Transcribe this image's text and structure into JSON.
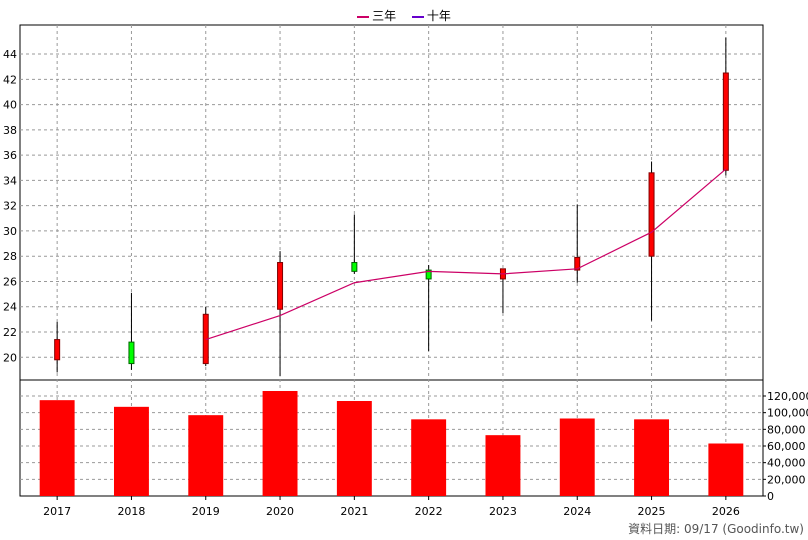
{
  "legend": {
    "three_year": "三年",
    "ten_year": "十年"
  },
  "source_note": "資料日期: 09/17  (Goodinfo.tw)",
  "colors": {
    "up_candle": "#ff0000",
    "up_candle_outline": "#800000",
    "down_candle": "#00ff00",
    "down_candle_outline": "#006400",
    "three_year_line": "#cc0066",
    "ten_year_line": "#6600cc",
    "volume_bar": "#ff0000",
    "grid": "#999999"
  },
  "chart_data": [
    {
      "type": "candlestick",
      "title": "",
      "categories": [
        "2017",
        "2018",
        "2019",
        "2020",
        "2021",
        "2022",
        "2023",
        "2024",
        "2025",
        "2026"
      ],
      "ohlc": [
        {
          "open": 19.8,
          "high": 22.8,
          "low": 18.8,
          "close": 21.4
        },
        {
          "open": 21.2,
          "high": 25.1,
          "low": 19.0,
          "close": 19.5
        },
        {
          "open": 19.5,
          "high": 24.0,
          "low": 19.3,
          "close": 23.4
        },
        {
          "open": 23.8,
          "high": 28.4,
          "low": 18.5,
          "close": 27.5
        },
        {
          "open": 27.5,
          "high": 31.3,
          "low": 26.6,
          "close": 26.8
        },
        {
          "open": 26.9,
          "high": 27.3,
          "low": 20.5,
          "close": 26.2
        },
        {
          "open": 26.2,
          "high": 27.0,
          "low": 23.5,
          "close": 27.0
        },
        {
          "open": 26.9,
          "high": 32.1,
          "low": 25.9,
          "close": 27.9
        },
        {
          "open": 28.0,
          "high": 35.5,
          "low": 22.9,
          "close": 34.6
        },
        {
          "open": 34.8,
          "high": 45.3,
          "low": 34.4,
          "close": 42.5
        }
      ],
      "series": [
        {
          "name": "三年",
          "values": [
            null,
            null,
            21.4,
            23.3,
            25.9,
            26.8,
            26.6,
            27.0,
            29.9,
            34.9
          ]
        },
        {
          "name": "十年",
          "values": [
            null,
            null,
            null,
            null,
            null,
            null,
            null,
            null,
            null,
            null
          ]
        }
      ],
      "y_ticks": [
        20,
        22,
        24,
        26,
        28,
        30,
        32,
        34,
        36,
        38,
        40,
        42,
        44
      ],
      "ylim": [
        18.2,
        46.3
      ],
      "grid": true,
      "legend_position": "top-center"
    },
    {
      "type": "bar",
      "categories": [
        "2017",
        "2018",
        "2019",
        "2020",
        "2021",
        "2022",
        "2023",
        "2024",
        "2025",
        "2026"
      ],
      "values": [
        115000,
        107000,
        97000,
        126000,
        114000,
        92000,
        73000,
        93000,
        92000,
        63000
      ],
      "y_ticks": [
        0,
        20000,
        40000,
        60000,
        80000,
        100000,
        120000
      ],
      "y_tick_labels": [
        "0",
        "20,000",
        "40,000",
        "60,000",
        "80,000",
        "100,000",
        "120,000"
      ],
      "ylim": [
        0,
        120000
      ],
      "grid": true
    }
  ]
}
